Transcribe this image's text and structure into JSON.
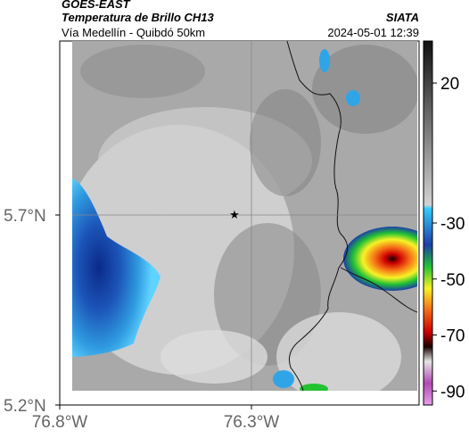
{
  "header": {
    "satellite": "GOES-EAST",
    "product": "Temperatura de Brillo CH13",
    "region": "Vía Medellín - Quibdó 50km",
    "source": "SIATA",
    "datetime": "2024-05-01 12:39"
  },
  "map": {
    "lon_labels": [
      "76.8°W",
      "76.3°W"
    ],
    "lat_labels": [
      "5.7°N",
      "5.2°N"
    ],
    "marker": "star-marker",
    "grid": true
  },
  "colorbar": {
    "tick_labels": [
      "20",
      "-30",
      "-50",
      "-70",
      "-90"
    ],
    "tick_values": [
      20,
      -30,
      -50,
      -70,
      -90
    ],
    "range": [
      35,
      -95
    ],
    "units": "",
    "colors": {
      "warm_gray_top": "#111111",
      "mid_gray": "#bfbfbf",
      "cyan": "#33ccff",
      "blue": "#1c3fa8",
      "green": "#22c232",
      "yellow": "#f7f326",
      "orange": "#f46a16",
      "red": "#cc0000",
      "dark": "#1a0000",
      "magenta": "#b14ab3"
    }
  }
}
